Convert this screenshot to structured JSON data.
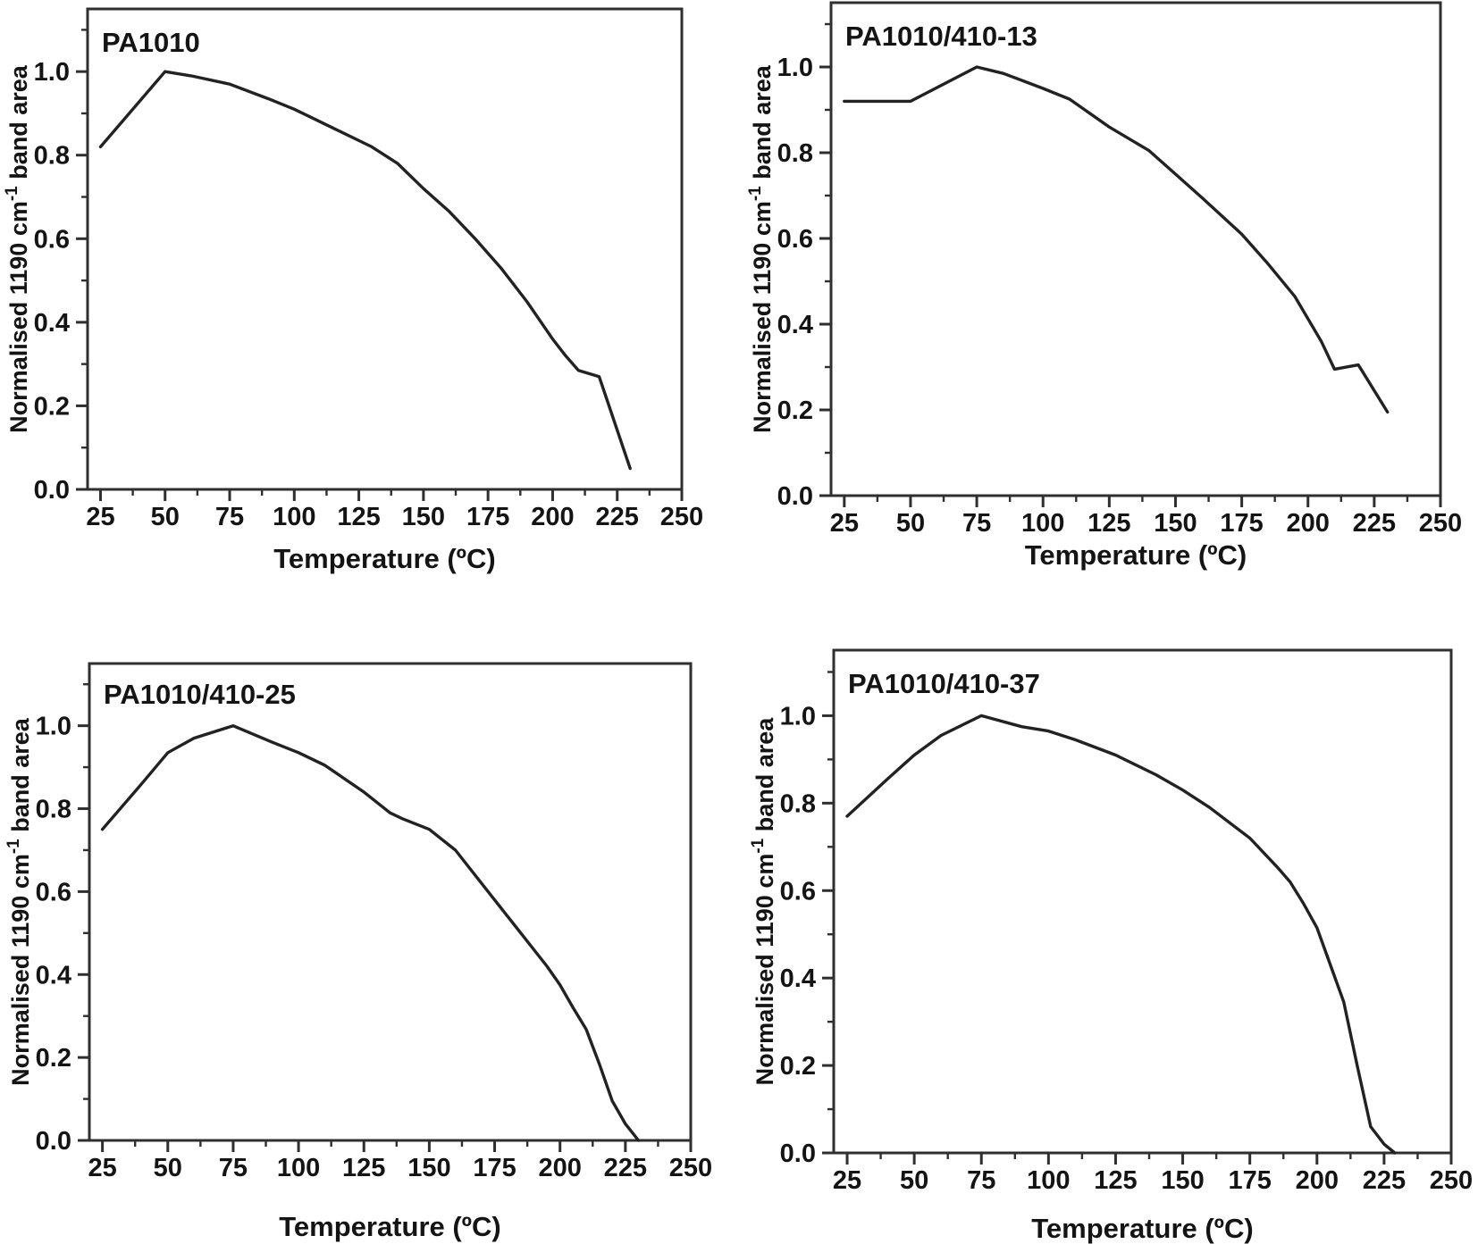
{
  "figure": {
    "description": "Four-panel line chart figure: normalised FTIR 1190 cm-1 band area versus temperature for four polyamide samples"
  },
  "styles": {
    "background": "#ffffff",
    "curve_color": "#222222",
    "axis_color": "#2f2f2f",
    "text_color": "#141414"
  },
  "chart_data": [
    {
      "type": "line",
      "title": "PA1010",
      "xlabel": "Temperature (ºC)",
      "ylabel": "Normalised 1190 cm⁻¹ band area",
      "ylabel_parts": [
        "Normalised 1190 cm",
        "-1",
        " band area"
      ],
      "xlim": [
        20,
        250
      ],
      "ylim": [
        0,
        1.15
      ],
      "xticks": [
        25,
        50,
        75,
        100,
        125,
        150,
        175,
        200,
        225,
        250
      ],
      "xtick_labels": [
        "25",
        "50",
        "75",
        "100",
        "125",
        "150",
        "175",
        "200",
        "225",
        "250"
      ],
      "yticks": [
        0.0,
        0.2,
        0.4,
        0.6,
        0.8,
        1.0
      ],
      "ytick_labels": [
        "0.0",
        "0.2",
        "0.4",
        "0.6",
        "0.8",
        "1.0"
      ],
      "legend": null,
      "grid": false,
      "x": [
        25,
        50,
        60,
        75,
        90,
        100,
        110,
        125,
        130,
        140,
        150,
        160,
        170,
        180,
        190,
        200,
        205,
        210,
        218,
        230
      ],
      "y": [
        0.82,
        1.0,
        0.99,
        0.97,
        0.935,
        0.91,
        0.88,
        0.835,
        0.82,
        0.78,
        0.72,
        0.665,
        0.6,
        0.53,
        0.45,
        0.36,
        0.32,
        0.285,
        0.27,
        0.05
      ]
    },
    {
      "type": "line",
      "title": "PA1010/410-13",
      "xlabel": "Temperature (ºC)",
      "ylabel": "Normalised 1190 cm⁻¹ band area",
      "ylabel_parts": [
        "Normalised 1190 cm",
        "-1",
        " band area"
      ],
      "xlim": [
        20,
        250
      ],
      "ylim": [
        0,
        1.15
      ],
      "xticks": [
        25,
        50,
        75,
        100,
        125,
        150,
        175,
        200,
        225,
        250
      ],
      "xtick_labels": [
        "25",
        "50",
        "75",
        "100",
        "125",
        "150",
        "175",
        "200",
        "225",
        "250"
      ],
      "yticks": [
        0.0,
        0.2,
        0.4,
        0.6,
        0.8,
        1.0
      ],
      "ytick_labels": [
        "0.0",
        "0.2",
        "0.4",
        "0.6",
        "0.8",
        "1.0"
      ],
      "legend": null,
      "grid": false,
      "x": [
        25,
        50,
        75,
        85,
        100,
        110,
        125,
        140,
        150,
        160,
        175,
        185,
        195,
        205,
        210,
        219,
        230
      ],
      "y": [
        0.92,
        0.92,
        1.0,
        0.985,
        0.95,
        0.925,
        0.86,
        0.805,
        0.75,
        0.695,
        0.61,
        0.54,
        0.465,
        0.36,
        0.295,
        0.305,
        0.195
      ]
    },
    {
      "type": "line",
      "title": "PA1010/410-25",
      "xlabel": "Temperature (ºC)",
      "ylabel": "Normalised 1190 cm⁻¹ band area",
      "ylabel_parts": [
        "Normalised 1190 cm",
        "-1",
        " band area"
      ],
      "xlim": [
        20,
        250
      ],
      "ylim": [
        0,
        1.15
      ],
      "xticks": [
        25,
        50,
        75,
        100,
        125,
        150,
        175,
        200,
        225,
        250
      ],
      "xtick_labels": [
        "25",
        "50",
        "75",
        "100",
        "125",
        "150",
        "175",
        "200",
        "225",
        "250"
      ],
      "yticks": [
        0.0,
        0.2,
        0.4,
        0.6,
        0.8,
        1.0
      ],
      "ytick_labels": [
        "0.0",
        "0.2",
        "0.4",
        "0.6",
        "0.8",
        "1.0"
      ],
      "legend": null,
      "grid": false,
      "x": [
        25,
        40,
        50,
        60,
        75,
        90,
        100,
        110,
        125,
        135,
        140,
        150,
        160,
        175,
        185,
        195,
        200,
        205,
        210,
        215,
        220,
        225,
        230
      ],
      "y": [
        0.75,
        0.86,
        0.935,
        0.97,
        1.0,
        0.96,
        0.935,
        0.905,
        0.84,
        0.79,
        0.775,
        0.75,
        0.7,
        0.58,
        0.5,
        0.42,
        0.375,
        0.32,
        0.268,
        0.185,
        0.095,
        0.04,
        0.0
      ]
    },
    {
      "type": "line",
      "title": "PA1010/410-37",
      "xlabel": "Temperature (ºC)",
      "ylabel": "Normalised 1190 cm⁻¹ band area",
      "ylabel_parts": [
        "Normalised 1190 cm",
        "-1",
        " band area"
      ],
      "xlim": [
        20,
        250
      ],
      "ylim": [
        0,
        1.15
      ],
      "xticks": [
        25,
        50,
        75,
        100,
        125,
        150,
        175,
        200,
        225,
        250
      ],
      "xtick_labels": [
        "25",
        "50",
        "75",
        "100",
        "125",
        "150",
        "175",
        "200",
        "225",
        "250"
      ],
      "yticks": [
        0.0,
        0.2,
        0.4,
        0.6,
        0.8,
        1.0
      ],
      "ytick_labels": [
        "0.0",
        "0.2",
        "0.4",
        "0.6",
        "0.8",
        "1.0"
      ],
      "legend": null,
      "grid": false,
      "x": [
        25,
        40,
        50,
        60,
        75,
        90,
        100,
        110,
        125,
        140,
        150,
        160,
        175,
        185,
        190,
        195,
        200,
        205,
        210,
        215,
        220,
        225,
        229
      ],
      "y": [
        0.77,
        0.855,
        0.91,
        0.955,
        1.0,
        0.975,
        0.965,
        0.945,
        0.91,
        0.865,
        0.83,
        0.79,
        0.72,
        0.655,
        0.62,
        0.57,
        0.515,
        0.43,
        0.345,
        0.2,
        0.06,
        0.02,
        0.0
      ]
    }
  ]
}
